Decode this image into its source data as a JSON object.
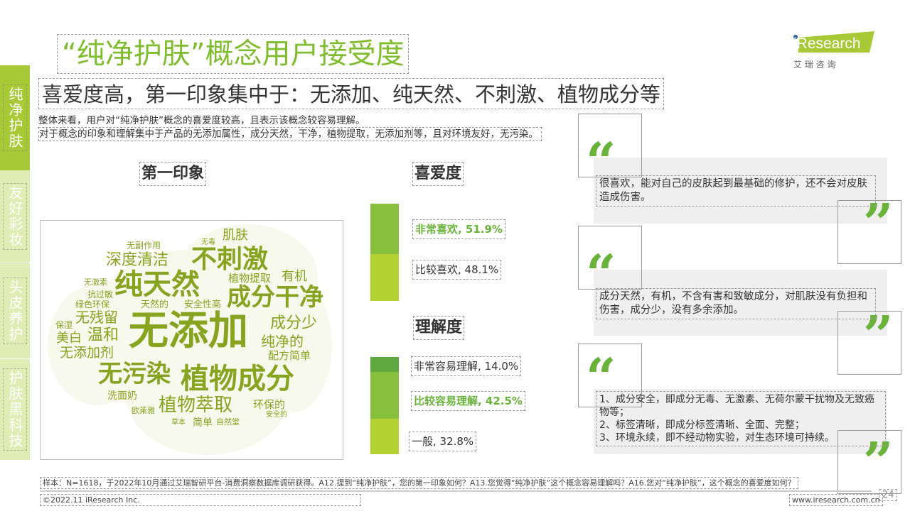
{
  "sidebar": [
    {
      "label": "纯净护肤",
      "active": true
    },
    {
      "label": "友好彩妆",
      "active": false
    },
    {
      "label": "头皮养护",
      "active": false
    },
    {
      "label": "护肤黑科技",
      "active": false
    }
  ],
  "logo": {
    "brand": "iResearch",
    "cn": "艾 瑞 咨 询"
  },
  "title": "“纯净护肤”概念用户接受度",
  "subtitle": "喜爱度高，第一印象集中于：无添加、纯天然、不刺激、植物成分等",
  "body": [
    "整体来看，用户对“纯净护肤”概念的喜爱度较高，且表示该概念较容易理解。",
    "对于概念的印象和理解集中于产品的无添加属性，成分天然，干净，植物提取，无添加剂等，且对环境友好，无污染。"
  ],
  "first_impression": {
    "heading": "第一印象",
    "words": [
      "无添加",
      "纯天然",
      "不刺激",
      "成分干净",
      "植物成分",
      "无污染",
      "深度清洁",
      "植物萃取",
      "成分少",
      "纯净的",
      "无残留",
      "温和",
      "美白",
      "无添加剂",
      "肌肤",
      "有机",
      "植物提取",
      "配方简单",
      "环保的",
      "洗面奶",
      "简单",
      "天然的",
      "安全性高",
      "抗过敏",
      "绿色环保",
      "无副作用",
      "保湿",
      "无激素",
      "欧莱雅",
      "自然堂",
      "草本",
      "安全的",
      "无毒"
    ]
  },
  "chart_data": [
    {
      "type": "bar",
      "title": "喜爱度",
      "stacked": true,
      "series": [
        {
          "name": "非常喜欢",
          "value": 51.9,
          "color": "#86c03c",
          "label": "非常喜欢, 51.9%"
        },
        {
          "name": "比较喜欢",
          "value": 48.1,
          "color": "#b3d12f",
          "label": "比较喜欢, 48.1%"
        }
      ]
    },
    {
      "type": "bar",
      "title": "理解度",
      "stacked": true,
      "series": [
        {
          "name": "非常容易理解",
          "value": 14.0,
          "color": "#5fa83e",
          "label": "非常容易理解, 14.0%"
        },
        {
          "name": "比较容易理解",
          "value": 42.5,
          "color": "#86c03c",
          "label": "比较容易理解, 42.5%"
        },
        {
          "name": "一般",
          "value": 32.8,
          "color": "#b3d12f",
          "label": "一般, 32.8%"
        }
      ]
    }
  ],
  "quotes": [
    {
      "text": "很喜欢，能对自己的皮肤起到最基础的修护，还不会对皮肤造成伤害。"
    },
    {
      "text": "成分天然，有机，不含有害和致敏成分，对肌肤没有负担和伤害，成分少，没有多余添加。"
    },
    {
      "text": "1、成分安全，即成分无毒、无激素、无荷尔蒙干扰物及无致癌物等；\n2、标签清晰，即成分标签清晰、全面、完整；\n3、环境永续，即不经动物实验，对生态环境可持续。"
    }
  ],
  "quote_open": "“",
  "quote_close": "”",
  "footer": {
    "note": "样本：N=1618，于2022年10月通过艾瑞智研平台-消费洞察数据库调研获得。A12.提到“纯净护肤”，您的第一印象如何？A13.您觉得“纯净护肤”这个概念容易理解吗？A16.您对“纯净护肤”，这个概念的喜爱度如何？",
    "copyright": "©2022.11 iResearch Inc.",
    "url": "www.iresearch.com.cn",
    "page": "24"
  }
}
